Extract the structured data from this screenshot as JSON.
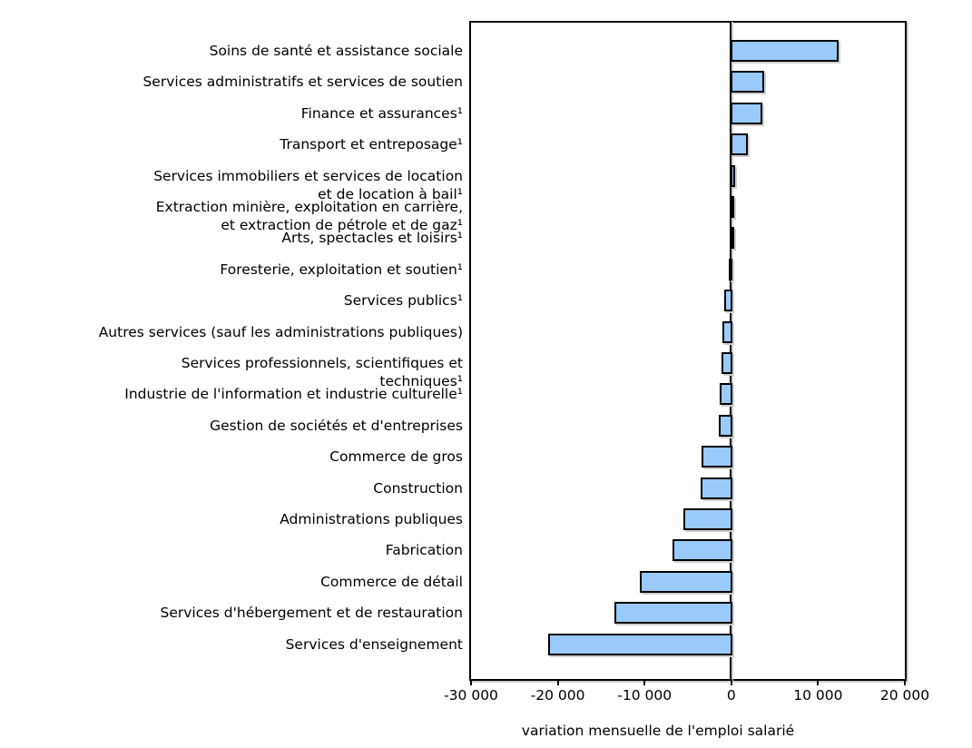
{
  "chart_data": {
    "type": "bar",
    "orientation": "horizontal",
    "title": "",
    "xlabel": "variation mensuelle de l'emploi salarié",
    "xlim": [
      -30000,
      20000
    ],
    "xticks": [
      -30000,
      -20000,
      -10000,
      0,
      10000,
      20000
    ],
    "xtick_labels": [
      "-30 000",
      "-20 000",
      "-10 000",
      "0",
      "10 000",
      "20 000"
    ],
    "grid": false,
    "legend": "none",
    "bar_fill_color": "#9ACAF9",
    "bar_border_color": "#000000",
    "categories": [
      "Soins de santé et assistance sociale",
      "Services administratifs et services de soutien",
      "Finance et assurances¹",
      "Transport et entreposage¹",
      "Services immobiliers et services de location\net de location à bail¹",
      "Extraction minière, exploitation en carrière,\net extraction de pétrole et de gaz¹",
      "Arts, spectacles et loisirs¹",
      "Foresterie, exploitation et soutien¹",
      "Services publics¹",
      "Autres services (sauf les administrations publiques)",
      "Services professionnels, scientifiques et\ntechniques¹",
      "Industrie de l'information et industrie culturelle¹",
      "Gestion de sociétés et d'entreprises",
      "Commerce de gros",
      "Construction",
      "Administrations publiques",
      "Fabrication",
      "Commerce de détail",
      "Services d'hébergement et de restauration",
      "Services d'enseignement"
    ],
    "values": [
      12500,
      3900,
      3700,
      2000,
      500,
      300,
      100,
      -200,
      -900,
      -1100,
      -1200,
      -1500,
      -1600,
      -3500,
      -3600,
      -5600,
      -6900,
      -10700,
      -13600,
      -21200
    ]
  }
}
